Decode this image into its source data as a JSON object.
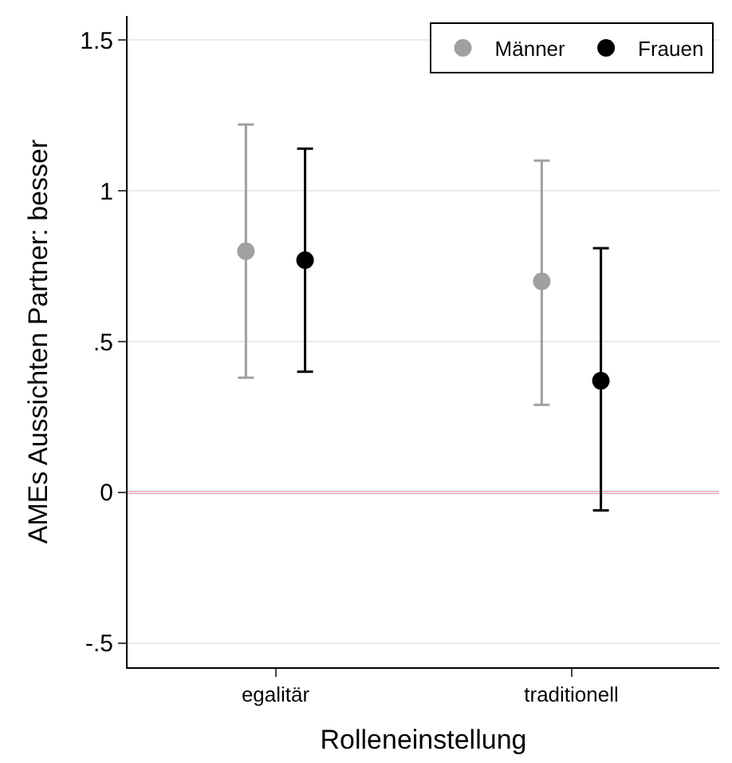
{
  "chart_data": {
    "type": "scatter",
    "xlabel": "Rolleneinstellung",
    "ylabel": "AMEs Aussichten Partner: besser",
    "categories": [
      "egalitär",
      "traditionell"
    ],
    "series": [
      {
        "name": "Männer",
        "color": "#a0a0a0",
        "values": [
          0.8,
          0.7
        ],
        "errors": [
          [
            0.38,
            1.22
          ],
          [
            0.29,
            1.1
          ]
        ]
      },
      {
        "name": "Frauen",
        "color": "#000000",
        "values": [
          0.77,
          0.37
        ],
        "errors": [
          [
            0.4,
            1.14
          ],
          [
            -0.06,
            0.81
          ]
        ]
      }
    ],
    "ylim": [
      -0.58,
      1.58
    ],
    "yticks": [
      {
        "value": -0.5,
        "label": "-.5"
      },
      0,
      {
        "value": 0.5,
        "label": ".5"
      },
      1,
      1.5
    ],
    "grid": "y",
    "legend": "top right",
    "marker": "circle",
    "ref_lines": [
      {
        "axis": "y",
        "value": 0,
        "color": "#e0305a"
      }
    ]
  }
}
